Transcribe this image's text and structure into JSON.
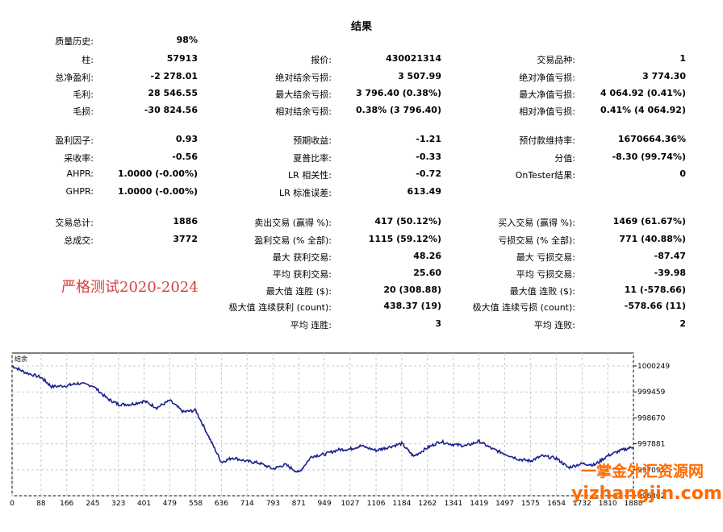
{
  "report": {
    "title": "结果",
    "col1": [
      {
        "label": "质量历史:",
        "value": "98%"
      },
      {
        "label": "柱:",
        "value": "57913"
      },
      {
        "label": "总净盈利:",
        "value": "-2 278.01"
      },
      {
        "label": "毛利:",
        "value": "28 546.55"
      },
      {
        "label": "毛损:",
        "value": "-30 824.56"
      },
      {
        "label": "盈利因子:",
        "value": "0.93"
      },
      {
        "label": "采收率:",
        "value": "-0.56"
      },
      {
        "label": "AHPR:",
        "value": "1.0000 (-0.00%)"
      },
      {
        "label": "GHPR:",
        "value": "1.0000 (-0.00%)"
      },
      {
        "label": "交易总计:",
        "value": "1886"
      },
      {
        "label": "总成交:",
        "value": "3772"
      }
    ],
    "col2": [
      {
        "label": "报价:",
        "value": "430021314"
      },
      {
        "label": "绝对结余亏损:",
        "value": "3 507.99"
      },
      {
        "label": "最大结余亏损:",
        "value": "3 796.40 (0.38%)"
      },
      {
        "label": "相对结余亏损:",
        "value": "0.38% (3 796.40)"
      },
      {
        "label": "预期收益:",
        "value": "-1.21"
      },
      {
        "label": "夏普比率:",
        "value": "-0.33"
      },
      {
        "label": "LR 相关性:",
        "value": "-0.72"
      },
      {
        "label": "LR 标准误差:",
        "value": "613.49"
      },
      {
        "label": "卖出交易 (赢得 %):",
        "value": "417 (50.12%)"
      },
      {
        "label": "盈利交易 (% 全部):",
        "value": "1115 (59.12%)"
      },
      {
        "label": "最大 获利交易:",
        "value": "48.26"
      },
      {
        "label": "平均 获利交易:",
        "value": "25.60"
      },
      {
        "label": "最大值 连胜 ($):",
        "value": "20 (308.88)"
      },
      {
        "label": "极大值 连续获利 (count):",
        "value": "438.37 (19)"
      },
      {
        "label": "平均 连胜:",
        "value": "3"
      }
    ],
    "col3": [
      {
        "label": "交易品种:",
        "value": "1"
      },
      {
        "label": "绝对净值亏损:",
        "value": "3 774.30"
      },
      {
        "label": "最大净值亏损:",
        "value": "4 064.92 (0.41%)"
      },
      {
        "label": "相对净值亏损:",
        "value": "0.41% (4 064.92)"
      },
      {
        "label": "预付款维持率:",
        "value": "1670664.36%"
      },
      {
        "label": "分值:",
        "value": "-8.30 (99.74%)"
      },
      {
        "label": "OnTester结果:",
        "value": "0"
      },
      {
        "label": "买入交易 (赢得 %):",
        "value": "1469 (61.67%)"
      },
      {
        "label": "亏损交易 (% 全部):",
        "value": "771 (40.88%)"
      },
      {
        "label": "最大 亏损交易:",
        "value": "-87.47"
      },
      {
        "label": "平均 亏损交易:",
        "value": "-39.98"
      },
      {
        "label": "最大值 连败 ($):",
        "value": "11 (-578.66)"
      },
      {
        "label": "极大值 连续亏损 (count):",
        "value": "-578.66 (11)"
      },
      {
        "label": "平均 连败:",
        "value": "2"
      }
    ],
    "note": "严格测试2020-2024"
  },
  "watermark": {
    "line1": "一掌金外汇资源网",
    "line2": "yizhangjin.com",
    "color": "#ff6a00"
  },
  "chart_data": {
    "type": "line",
    "legend_label": "结余",
    "line_color": "#1a1f8c",
    "grid": true,
    "x_ticks": [
      "0",
      "88",
      "166",
      "245",
      "323",
      "401",
      "479",
      "558",
      "636",
      "714",
      "793",
      "871",
      "949",
      "1027",
      "1106",
      "1184",
      "1262",
      "1341",
      "1419",
      "1497",
      "1575",
      "1654",
      "1732",
      "1810",
      "1888"
    ],
    "y_ticks": [
      "1000249",
      "999459",
      "998670",
      "997881",
      "997091",
      "996302"
    ],
    "ylim": [
      996302,
      1000249
    ],
    "xlim": [
      0,
      1888
    ],
    "series": [
      {
        "x": [
          0,
          40,
          88,
          120,
          166,
          200,
          245,
          290,
          323,
          360,
          401,
          440,
          479,
          520,
          558,
          600,
          636,
          670,
          714,
          750,
          793,
          830,
          871,
          910,
          949,
          990,
          1027,
          1060,
          1106,
          1140,
          1184,
          1220,
          1262,
          1300,
          1341,
          1380,
          1419,
          1460,
          1497,
          1540,
          1575,
          1610,
          1654,
          1690,
          1732,
          1770,
          1810,
          1850,
          1888
        ],
        "y": [
          1000250,
          1000050,
          999900,
          999620,
          999650,
          999720,
          999650,
          999250,
          999080,
          999080,
          999180,
          998980,
          999200,
          998850,
          998900,
          998050,
          997320,
          997460,
          997350,
          997300,
          997120,
          997250,
          997000,
          997500,
          997560,
          997700,
          997720,
          997820,
          997680,
          997770,
          997890,
          997500,
          997760,
          997950,
          997860,
          997820,
          997960,
          997720,
          997580,
          997410,
          997360,
          997510,
          997440,
          997160,
          997280,
          997240,
          997520,
          997680,
          997790
        ]
      }
    ]
  }
}
